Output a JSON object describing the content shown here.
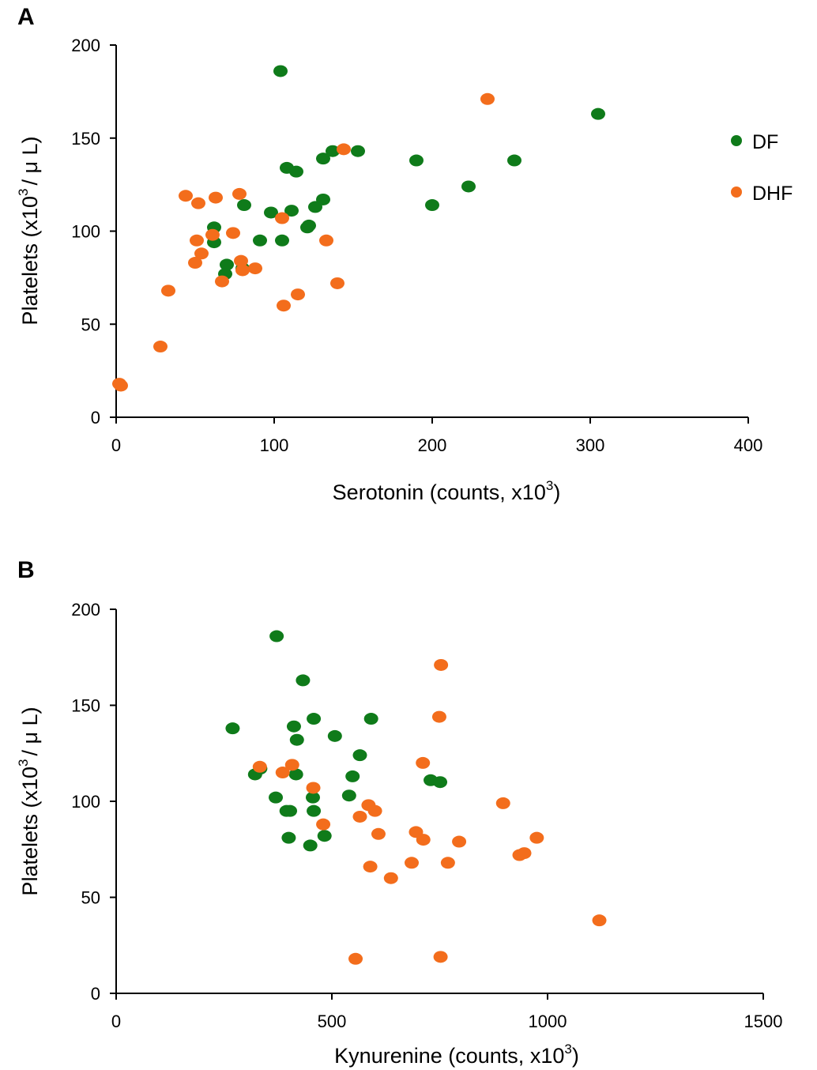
{
  "colors": {
    "DF": "#0f7b1a",
    "DHF": "#f36d1c"
  },
  "legend": {
    "entries": [
      "DF",
      "DHF"
    ]
  },
  "chart_data": [
    {
      "panel_label": "A",
      "type": "scatter",
      "title": "",
      "xlabel": "Serotonin (counts, x10",
      "xlabel_sup": "3",
      "xlabel_end": ")",
      "ylabel": "Platelets (x10",
      "ylabel_sup": "3",
      "ylabel_end": "/ μ L)",
      "xlim": [
        0,
        400
      ],
      "ylim": [
        0,
        200
      ],
      "xticks": [
        0,
        100,
        200,
        300,
        400
      ],
      "yticks": [
        0,
        50,
        100,
        150,
        200
      ],
      "grid": false,
      "legend_position": "right",
      "series": [
        {
          "name": "DF",
          "x": [
            104,
            108,
            114,
            131,
            137,
            153,
            190,
            200,
            223,
            252,
            305,
            131,
            126,
            111,
            98,
            81,
            62,
            62,
            70,
            69,
            80,
            91,
            105,
            121,
            122
          ],
          "y": [
            186,
            134,
            132,
            139,
            143,
            143,
            138,
            114,
            124,
            138,
            163,
            117,
            113,
            111,
            110,
            114,
            102,
            94,
            82,
            77,
            80,
            95,
            95,
            102,
            103
          ]
        },
        {
          "name": "DHF",
          "x": [
            235,
            144,
            44,
            52,
            63,
            78,
            105,
            51,
            61,
            74,
            54,
            50,
            79,
            88,
            80,
            67,
            115,
            106,
            133,
            140,
            33,
            28,
            2,
            3
          ],
          "y": [
            171,
            144,
            119,
            115,
            118,
            120,
            107,
            95,
            98,
            99,
            88,
            83,
            84,
            80,
            79,
            73,
            66,
            60,
            95,
            72,
            68,
            38,
            18,
            17
          ]
        }
      ]
    },
    {
      "panel_label": "B",
      "type": "scatter",
      "title": "",
      "xlabel": "Kynurenine (counts, x10",
      "xlabel_sup": "3",
      "xlabel_end": ")",
      "ylabel": "Platelets (x10",
      "ylabel_sup": "3",
      "ylabel_end": "/ μ L)",
      "xlim": [
        0,
        1500
      ],
      "ylim": [
        0,
        200
      ],
      "xticks": [
        0,
        500,
        1000,
        1500
      ],
      "yticks": [
        0,
        50,
        100,
        150,
        200
      ],
      "grid": false,
      "series": [
        {
          "name": "DF",
          "x": [
            372,
            433,
            270,
            412,
            458,
            419,
            591,
            507,
            334,
            322,
            565,
            548,
            417,
            370,
            540,
            456,
            395,
            403,
            458,
            729,
            751,
            483,
            400,
            450
          ],
          "y": [
            186,
            163,
            138,
            139,
            143,
            132,
            143,
            134,
            117,
            114,
            124,
            113,
            114,
            102,
            103,
            102,
            95,
            95,
            95,
            111,
            110,
            82,
            81,
            77
          ]
        },
        {
          "name": "DHF",
          "x": [
            753,
            749,
            333,
            386,
            408,
            711,
            457,
            897,
            585,
            600,
            565,
            480,
            695,
            712,
            608,
            795,
            975,
            935,
            946,
            685,
            769,
            589,
            637,
            1120,
            752,
            555
          ],
          "y": [
            171,
            144,
            118,
            115,
            119,
            120,
            107,
            99,
            98,
            95,
            92,
            88,
            84,
            80,
            83,
            79,
            81,
            72,
            73,
            68,
            68,
            66,
            60,
            38,
            19,
            18
          ]
        }
      ]
    }
  ]
}
